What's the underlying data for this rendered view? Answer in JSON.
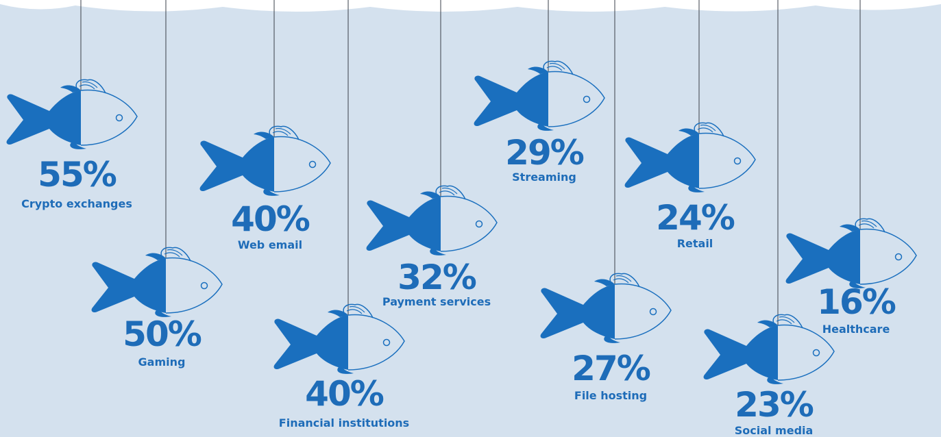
{
  "items": [
    {
      "value": "55%",
      "label": "Crypto exchanges"
    },
    {
      "value": "50%",
      "label": "Gaming"
    },
    {
      "value": "40%",
      "label": "Web email"
    },
    {
      "value": "40%",
      "label": "Financial institutions"
    },
    {
      "value": "32%",
      "label": "Payment services"
    },
    {
      "value": "29%",
      "label": "Streaming"
    },
    {
      "value": "27%",
      "label": "File hosting"
    },
    {
      "value": "24%",
      "label": "Retail"
    },
    {
      "value": "23%",
      "label": "Social media"
    },
    {
      "value": "16%",
      "label": "Healthcare"
    }
  ]
}
